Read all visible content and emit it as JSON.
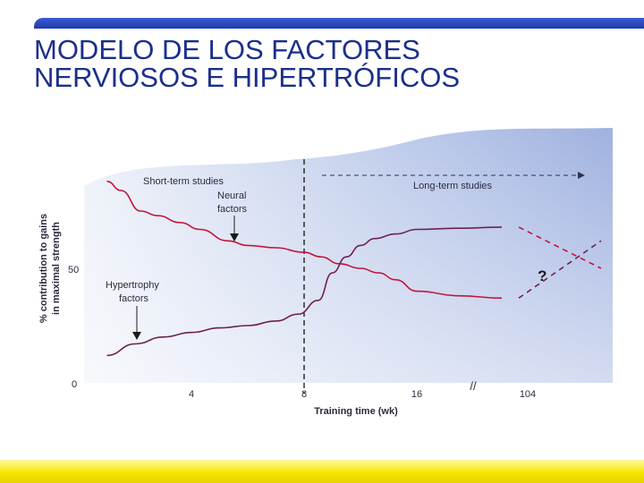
{
  "slide": {
    "title_line1": "MODELO DE LOS FACTORES",
    "title_line2": "NERVIOSOS E HIPERTRÓFICOS"
  },
  "chart_data": {
    "type": "line",
    "xlabel": "Training time (wk)",
    "ylabel_line1": "% contribution to gains",
    "ylabel_line2": "in maximal strength",
    "x_ticks": [
      "4",
      "8",
      "16",
      "104"
    ],
    "y_ticks": [
      "0",
      "50"
    ],
    "ylim": [
      0,
      100
    ],
    "axis_break": "//",
    "phase_labels": {
      "short_term": "Short-term studies",
      "long_term": "Long-term studies"
    },
    "question_mark": "?",
    "series": [
      {
        "name": "Neural factors",
        "label_line1": "Neural",
        "label_line2": "factors",
        "color": "#c2163c",
        "points": [
          [
            1.0,
            88
          ],
          [
            1.5,
            84
          ],
          [
            2.2,
            75
          ],
          [
            2.8,
            73
          ],
          [
            3.6,
            70
          ],
          [
            4.3,
            67
          ],
          [
            5.3,
            62
          ],
          [
            6.0,
            60
          ],
          [
            7.0,
            59
          ],
          [
            8.0,
            57
          ],
          [
            9.2,
            55
          ],
          [
            10.5,
            52
          ],
          [
            12.0,
            50
          ],
          [
            13.3,
            48
          ],
          [
            14.5,
            45
          ],
          [
            16.0,
            40
          ],
          [
            17.5,
            38
          ],
          [
            19.0,
            37
          ]
        ],
        "extension": {
          "type": "dashed",
          "from": [
            19.6,
            68
          ],
          "to": [
            23.5,
            50
          ]
        }
      },
      {
        "name": "Hypertrophy factors",
        "label_line1": "Hypertrophy",
        "label_line2": "factors",
        "color": "#6e2150",
        "points": [
          [
            1.0,
            12
          ],
          [
            2.0,
            17
          ],
          [
            3.0,
            20
          ],
          [
            4.0,
            22
          ],
          [
            5.0,
            24
          ],
          [
            6.0,
            25
          ],
          [
            7.0,
            27
          ],
          [
            7.8,
            30
          ],
          [
            9.0,
            36
          ],
          [
            10.0,
            48
          ],
          [
            11.0,
            55
          ],
          [
            12.0,
            60
          ],
          [
            13.0,
            63
          ],
          [
            14.5,
            65
          ],
          [
            16.0,
            67
          ],
          [
            17.5,
            67.5
          ],
          [
            19.0,
            68
          ]
        ],
        "extension": {
          "type": "dashed",
          "from": [
            19.6,
            37
          ],
          "to": [
            23.5,
            62
          ]
        }
      }
    ],
    "grid": false,
    "background_color": "#d2dbef",
    "phase_divider_x": 8
  }
}
